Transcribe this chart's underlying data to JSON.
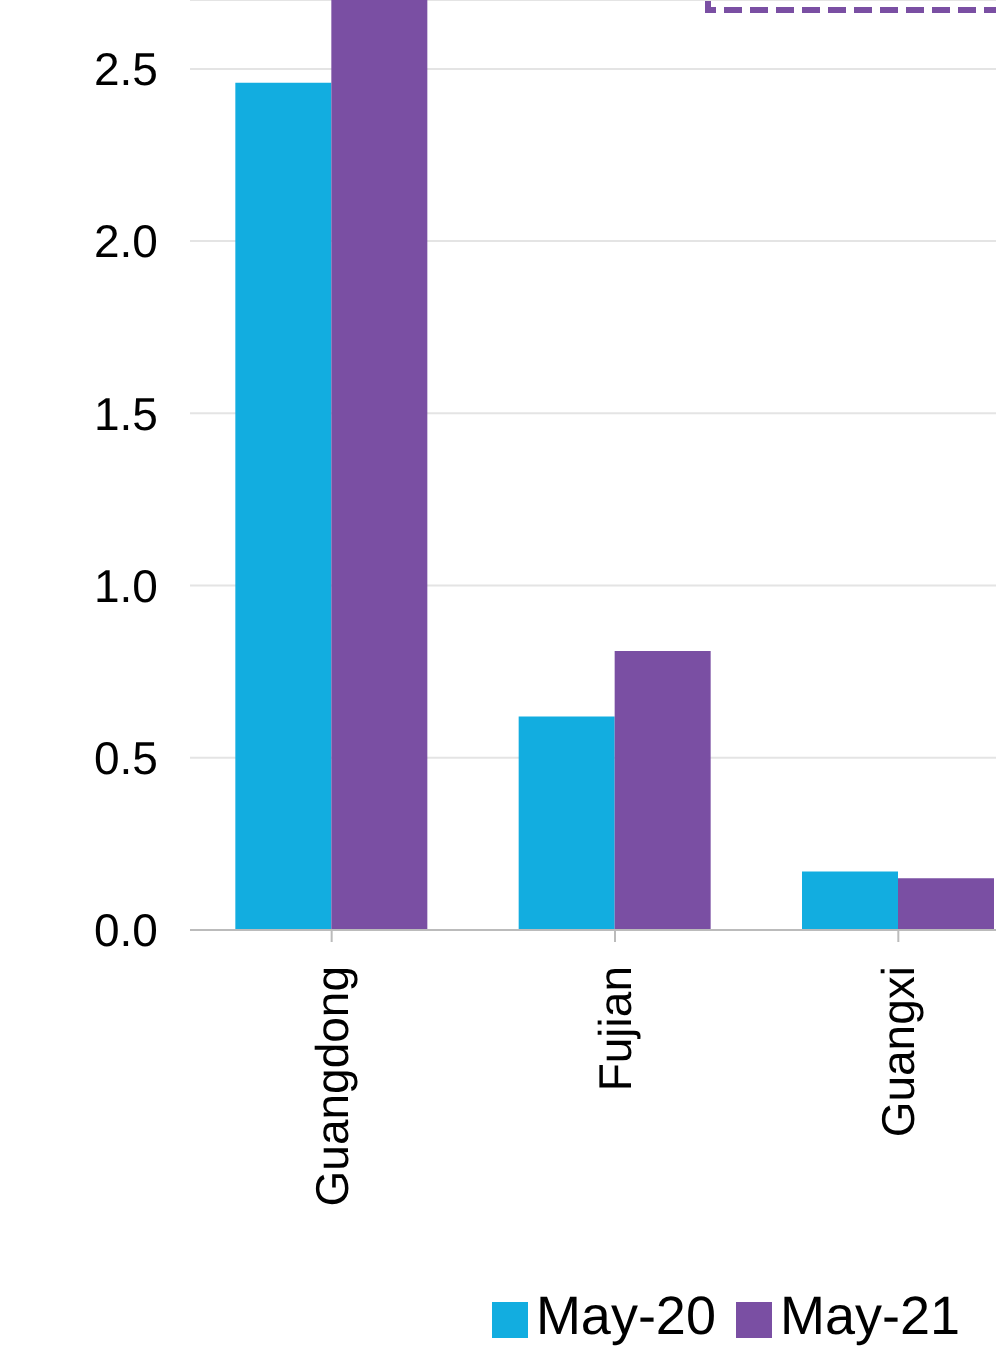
{
  "chart_data": {
    "type": "bar",
    "categories": [
      "Guangdong",
      "Fujian",
      "Guangxi"
    ],
    "series": [
      {
        "name": "May-20",
        "color": "#12ade0",
        "values": [
          2.46,
          0.62,
          0.17
        ]
      },
      {
        "name": "May-21",
        "color": "#7a4fa3",
        "values": [
          2.7,
          0.81,
          0.15
        ]
      }
    ],
    "ylim": [
      0,
      2.7
    ],
    "yticks": [
      {
        "value": 0,
        "label": "0.0"
      },
      {
        "value": 0.5,
        "label": "0.5"
      },
      {
        "value": 1,
        "label": "1.0"
      },
      {
        "value": 1.5,
        "label": "1.5"
      },
      {
        "value": 2,
        "label": "2.0"
      },
      {
        "value": 2.5,
        "label": "2.5"
      }
    ],
    "grid": "y",
    "legend": "bottom"
  }
}
